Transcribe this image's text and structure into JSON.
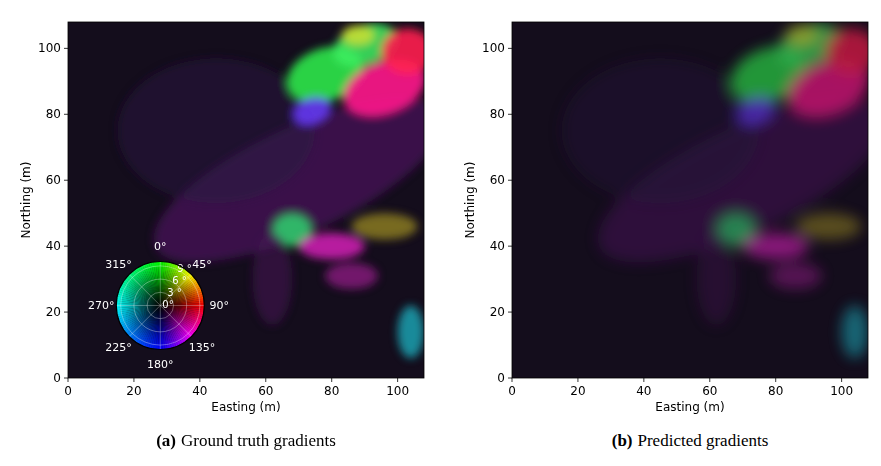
{
  "chart_data": [
    {
      "type": "image",
      "panel_label": "(a)",
      "caption": "Ground truth gradients",
      "xlabel": "Easting (m)",
      "ylabel": "Northing (m)",
      "xlim": [
        0,
        108
      ],
      "ylim": [
        0,
        108
      ],
      "xticks": [
        0,
        20,
        40,
        60,
        80,
        100
      ],
      "yticks": [
        0,
        20,
        40,
        60,
        80,
        100
      ],
      "color_wheel": {
        "rlim": [
          0,
          10
        ],
        "angle_ticks": [
          {
            "value": 0,
            "label": "0°"
          },
          {
            "value": 45,
            "label": "45°"
          },
          {
            "value": 90,
            "label": "90°"
          },
          {
            "value": 135,
            "label": "135°"
          },
          {
            "value": 180,
            "label": "180°"
          },
          {
            "value": 225,
            "label": "225°"
          },
          {
            "value": 270,
            "label": "270°"
          },
          {
            "value": 315,
            "label": "315°"
          }
        ],
        "radius_ticks": [
          {
            "value": 0,
            "label": "0°"
          },
          {
            "value": 3,
            "label": "3 °"
          },
          {
            "value": 6,
            "label": "6 °"
          },
          {
            "value": 9,
            "label": "9 °"
          }
        ]
      }
    },
    {
      "type": "image",
      "panel_label": "(b)",
      "caption": "Predicted gradients",
      "xlabel": "Easting (m)",
      "ylabel": "Northing (m)",
      "xlim": [
        0,
        108
      ],
      "ylim": [
        0,
        108
      ],
      "xticks": [
        0,
        20,
        40,
        60,
        80,
        100
      ],
      "yticks": [
        0,
        20,
        40,
        60,
        80,
        100
      ]
    }
  ]
}
